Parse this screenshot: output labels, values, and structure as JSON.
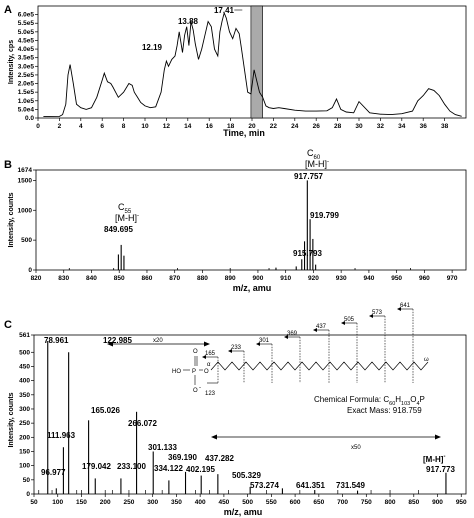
{
  "panels": {
    "a": {
      "letter": "A"
    },
    "b": {
      "letter": "B"
    },
    "c": {
      "letter": "C"
    }
  },
  "chart_data": [
    {
      "id": "A",
      "type": "line",
      "xlabel": "Time, min",
      "ylabel": "Intensity, cps",
      "xlim": [
        0,
        40
      ],
      "ylim": [
        0,
        650000.0
      ],
      "xticks": [
        0,
        2,
        4,
        6,
        8,
        10,
        12,
        14,
        16,
        18,
        20,
        22,
        24,
        26,
        28,
        30,
        32,
        34,
        36,
        38
      ],
      "yticks": [
        {
          "v": 0,
          "label": "0.0"
        },
        {
          "v": 50000,
          "label": "5.0e4"
        },
        {
          "v": 100000,
          "label": "1.0e5"
        },
        {
          "v": 150000,
          "label": "1.5e5"
        },
        {
          "v": 200000,
          "label": "2.0e5"
        },
        {
          "v": 250000,
          "label": "2.5e5"
        },
        {
          "v": 300000,
          "label": "3.0e5"
        },
        {
          "v": 350000,
          "label": "3.5e5"
        },
        {
          "v": 400000,
          "label": "4.0e5"
        },
        {
          "v": 450000,
          "label": "4.5e5"
        },
        {
          "v": 500000,
          "label": "5.0e5"
        },
        {
          "v": 550000,
          "label": "5.5e5"
        },
        {
          "v": 600000,
          "label": "6.0e5"
        }
      ],
      "highlight": [
        19.9,
        21.0
      ],
      "x": [
        0.5,
        1,
        2,
        2.3,
        2.6,
        2.8,
        3,
        3.3,
        3.6,
        4,
        4.5,
        5,
        5.5,
        6,
        6.2,
        6.5,
        6.8,
        7,
        7.5,
        8,
        8.5,
        8.8,
        9,
        9.3,
        9.6,
        10,
        10.5,
        11,
        11.5,
        11.8,
        12,
        12.2,
        12.5,
        12.8,
        13,
        13.2,
        13.5,
        13.7,
        13.9,
        14.1,
        14.3,
        14.5,
        14.7,
        15,
        15.3,
        15.6,
        15.9,
        16.2,
        16.5,
        16.8,
        17,
        17.2,
        17.4,
        17.6,
        17.9,
        18.2,
        18.5,
        18.8,
        19,
        19.3,
        19.6,
        19.9,
        20.2,
        20.5,
        20.7,
        21,
        21.3,
        21.6,
        22,
        22.5,
        23,
        24,
        25,
        26,
        27,
        27.5,
        27.9,
        28.3,
        28.8,
        29.5,
        30,
        31,
        32,
        33,
        34,
        35,
        35.5,
        36,
        36.5,
        37,
        37.5,
        38,
        38.5,
        39,
        39.6
      ],
      "values": [
        8000,
        8000,
        9000,
        20000,
        80000,
        250000,
        310000,
        200000,
        80000,
        60000,
        50000,
        60000,
        120000,
        220000,
        260000,
        210000,
        200000,
        180000,
        120000,
        150000,
        200000,
        190000,
        150000,
        120000,
        90000,
        70000,
        60000,
        65000,
        150000,
        280000,
        330000,
        300000,
        340000,
        360000,
        420000,
        500000,
        380000,
        480000,
        530000,
        420000,
        560000,
        510000,
        430000,
        340000,
        400000,
        480000,
        560000,
        530000,
        400000,
        360000,
        500000,
        560000,
        610000,
        580000,
        500000,
        460000,
        520000,
        490000,
        410000,
        280000,
        150000,
        140000,
        280000,
        200000,
        150000,
        120000,
        70000,
        60000,
        55000,
        60000,
        55000,
        45000,
        40000,
        40000,
        42000,
        60000,
        110000,
        50000,
        35000,
        30000,
        95000,
        30000,
        22000,
        20000,
        25000,
        40000,
        100000,
        130000,
        170000,
        160000,
        130000,
        80000,
        40000,
        20000,
        10000
      ],
      "annotations": [
        {
          "label": "13.88",
          "x": 13.88
        },
        {
          "label": "12.19",
          "x": 12.19
        },
        {
          "label": "17.41",
          "x": 17.41
        }
      ]
    },
    {
      "id": "B",
      "type": "bar",
      "xlabel": "m/z, amu",
      "ylabel": "Intensity, counts",
      "xlim": [
        820,
        975
      ],
      "ylim": [
        0,
        1674
      ],
      "xticks": [
        820,
        830,
        840,
        850,
        860,
        870,
        880,
        890,
        900,
        910,
        920,
        930,
        940,
        950,
        960,
        970
      ],
      "yticks": [
        {
          "v": 0,
          "label": "0"
        },
        {
          "v": 500,
          "label": "500"
        },
        {
          "v": 1000,
          "label": "1000"
        },
        {
          "v": 1500,
          "label": "1500"
        },
        {
          "v": 1674,
          "label": "1674"
        }
      ],
      "x": [
        849.7,
        850.7,
        851.7,
        906.5,
        913.8,
        915.8,
        916.8,
        917.8,
        918.8,
        919.8,
        920.8
      ],
      "values": [
        260,
        420,
        240,
        40,
        60,
        180,
        480,
        1500,
        850,
        520,
        90
      ],
      "labels": [
        {
          "formula_main": "C",
          "formula_sub": "55",
          "ion": "[M-H]",
          "ion_sup": "-",
          "mz": "849.695",
          "x": 849.7
        },
        {
          "formula_main": "C",
          "formula_sub": "60",
          "ion": "[M-H]",
          "ion_sup": "-",
          "mz": "917.757",
          "x": 917.8
        },
        {
          "mz": "919.799",
          "x": 919.8
        },
        {
          "mz": "915.793",
          "x": 915.8
        }
      ]
    },
    {
      "id": "C",
      "type": "bar",
      "xlabel": "m/z, amu",
      "ylabel": "Intensity, counts",
      "xlim": [
        50,
        960
      ],
      "ylim": [
        0,
        561
      ],
      "xticks": [
        50,
        100,
        150,
        200,
        250,
        300,
        350,
        400,
        450,
        500,
        550,
        600,
        650,
        700,
        750,
        800,
        850,
        900,
        950
      ],
      "yticks": [
        {
          "v": 0,
          "label": "0"
        },
        {
          "v": 50,
          "label": "50"
        },
        {
          "v": 100,
          "label": "100"
        },
        {
          "v": 150,
          "label": "150"
        },
        {
          "v": 200,
          "label": "200"
        },
        {
          "v": 250,
          "label": "250"
        },
        {
          "v": 300,
          "label": "300"
        },
        {
          "v": 350,
          "label": "350"
        },
        {
          "v": 400,
          "label": "400"
        },
        {
          "v": 450,
          "label": "450"
        },
        {
          "v": 500,
          "label": "500"
        },
        {
          "v": 561,
          "label": "561"
        }
      ],
      "x": [
        78.961,
        96.977,
        111.963,
        122.985,
        165.026,
        179.042,
        233.1,
        266.072,
        301.133,
        334.122,
        369.19,
        402.195,
        437.282,
        505.329,
        573.274,
        641.351,
        731.549,
        917.773
      ],
      "values": [
        540,
        20,
        165,
        500,
        260,
        55,
        55,
        290,
        150,
        48,
        78,
        65,
        70,
        25,
        20,
        14,
        12,
        75
      ],
      "labels": [
        "78.961",
        "96.977",
        "111.963",
        "122.985",
        "165.026",
        "179.042",
        "233.100",
        "266.072",
        "301.133",
        "334.122",
        "369.190",
        "402.195",
        "437.282",
        "505.329",
        "573.274",
        "641.351",
        "731.549",
        "917.773"
      ],
      "scale_marks": [
        {
          "label": "x20"
        },
        {
          "label": "x50"
        }
      ],
      "ion_label": "[M-H]",
      "ion_sup": "-",
      "structure": {
        "fragments": [
          "165",
          "233",
          "301",
          "369",
          "437",
          "505",
          "573",
          "641"
        ],
        "lower_fragment": "123",
        "alpha": "α",
        "omega": "ω",
        "phosphate": [
          "O",
          "P",
          "O",
          "HO",
          "O",
          "-"
        ]
      },
      "formula_text": "Chemical Formula: C",
      "formula_sub": "60",
      "formula_mid": "H",
      "formula_sub2": "103",
      "formula_end": "O",
      "formula_sub3": "4",
      "formula_tail": "P",
      "exact_mass": "Exact Mass: 918.759"
    }
  ]
}
